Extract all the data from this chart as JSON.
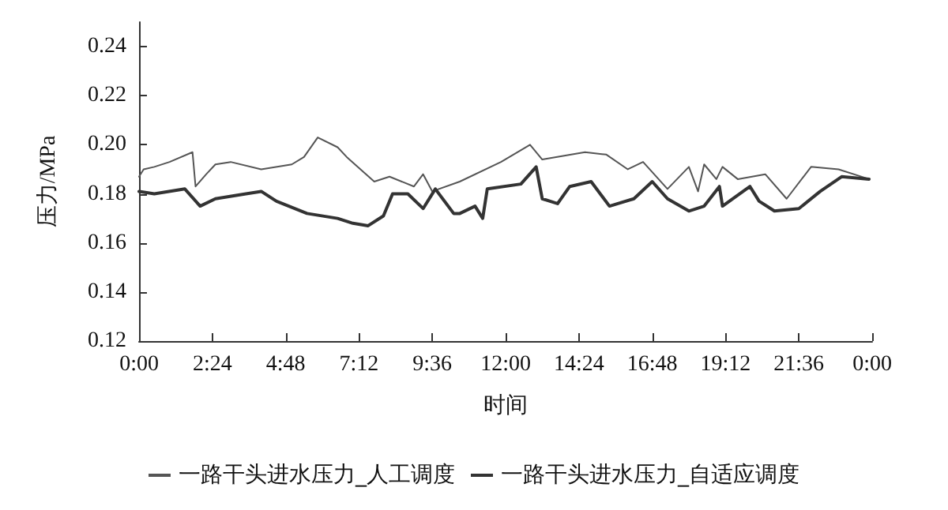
{
  "chart_data": {
    "type": "line",
    "xlabel": "时间",
    "ylabel": "压力/MPa",
    "xlim": [
      0,
      24
    ],
    "ylim": [
      0.12,
      0.25
    ],
    "xticks": [
      {
        "value": 0,
        "label": "0:00"
      },
      {
        "value": 2.4,
        "label": "2:24"
      },
      {
        "value": 4.8,
        "label": "4:48"
      },
      {
        "value": 7.2,
        "label": "7:12"
      },
      {
        "value": 9.6,
        "label": "9:36"
      },
      {
        "value": 12,
        "label": "12:00"
      },
      {
        "value": 14.4,
        "label": "14:24"
      },
      {
        "value": 16.8,
        "label": "16:48"
      },
      {
        "value": 19.2,
        "label": "19:12"
      },
      {
        "value": 21.6,
        "label": "21:36"
      },
      {
        "value": 24,
        "label": "0:00"
      }
    ],
    "yticks": [
      0.12,
      0.14,
      0.16,
      0.18,
      {
        "value": 0.2,
        "label": "0.20"
      },
      0.22,
      0.24
    ],
    "grid": false,
    "legend": "bottom",
    "marker": "none",
    "line_style": "solid",
    "series": [
      {
        "name": "一路干头进水压力_人工调度",
        "color": "#555555",
        "x": [
          0,
          0.15,
          0.5,
          1,
          1.75,
          1.85,
          2.2,
          2.5,
          3,
          4,
          5,
          5.4,
          5.85,
          6.5,
          6.8,
          7.7,
          8.2,
          9,
          9.3,
          9.6,
          10.5,
          11.85,
          12.8,
          13.2,
          14.6,
          15.3,
          16,
          16.5,
          17.3,
          18,
          18.3,
          18.5,
          18.9,
          19.1,
          19.6,
          20.5,
          21.2,
          22,
          22.9,
          23.9
        ],
        "values": [
          0.187,
          0.19,
          0.191,
          0.193,
          0.197,
          0.183,
          0.188,
          0.192,
          0.193,
          0.19,
          0.192,
          0.195,
          0.203,
          0.199,
          0.195,
          0.185,
          0.187,
          0.183,
          0.188,
          0.181,
          0.185,
          0.193,
          0.2,
          0.194,
          0.197,
          0.196,
          0.19,
          0.193,
          0.182,
          0.191,
          0.181,
          0.192,
          0.186,
          0.191,
          0.186,
          0.188,
          0.178,
          0.191,
          0.19,
          0.186
        ]
      },
      {
        "name": "一路干头进水压力_自适应调度",
        "color": "#333333",
        "x": [
          0,
          0.5,
          1.5,
          2,
          2.5,
          3.5,
          4,
          4.5,
          5.5,
          6.5,
          7,
          7.5,
          8,
          8.3,
          8.8,
          9.3,
          9.7,
          10.3,
          10.5,
          11,
          11.25,
          11.4,
          12.5,
          13,
          13.2,
          13.7,
          14.1,
          14.8,
          15.4,
          16.2,
          16.8,
          17.3,
          18,
          18.5,
          19,
          19.1,
          20,
          20.3,
          20.8,
          21.6,
          22.3,
          23,
          23.9
        ],
        "values": [
          0.181,
          0.18,
          0.182,
          0.175,
          0.178,
          0.18,
          0.181,
          0.177,
          0.172,
          0.17,
          0.168,
          0.167,
          0.171,
          0.18,
          0.18,
          0.174,
          0.182,
          0.172,
          0.172,
          0.175,
          0.17,
          0.182,
          0.184,
          0.191,
          0.178,
          0.176,
          0.183,
          0.185,
          0.175,
          0.178,
          0.185,
          0.178,
          0.173,
          0.175,
          0.183,
          0.175,
          0.183,
          0.177,
          0.173,
          0.174,
          0.181,
          0.187,
          0.186
        ]
      }
    ]
  }
}
